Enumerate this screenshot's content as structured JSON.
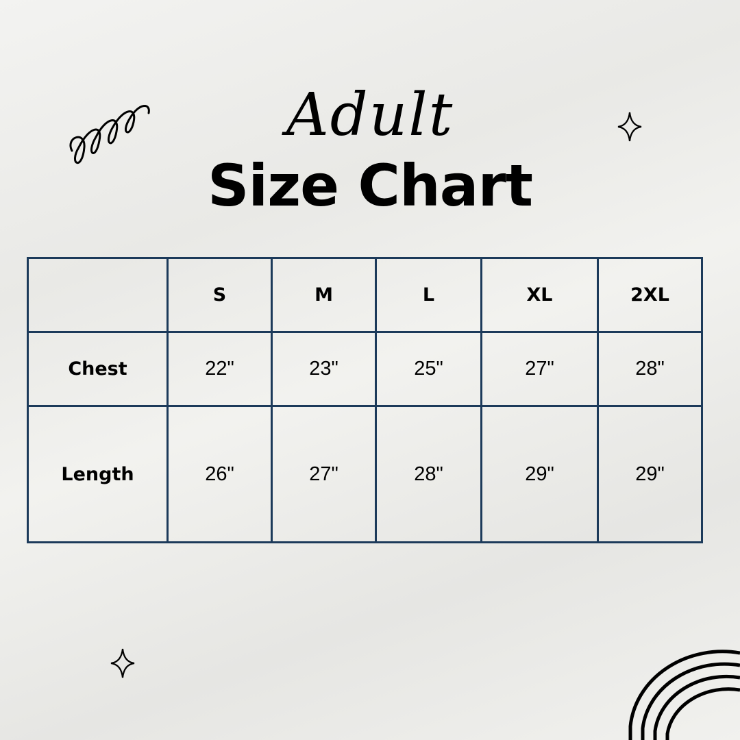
{
  "header": {
    "script_title": "Adult",
    "title": "Size Chart"
  },
  "table": {
    "columns": [
      "",
      "S",
      "M",
      "L",
      "XL",
      "2XL"
    ],
    "rows": [
      {
        "label": "Chest",
        "values": [
          "22\"",
          "23\"",
          "25\"",
          "27\"",
          "28\""
        ]
      },
      {
        "label": "Length",
        "values": [
          "26\"",
          "27\"",
          "28\"",
          "29\"",
          "29\""
        ]
      }
    ]
  },
  "colors": {
    "grid_line": "#1c3a5a",
    "text": "#000000"
  },
  "decorations": [
    "squiggle-icon",
    "sparkle-icon",
    "sparkle-icon",
    "rainbow-arcs-icon"
  ]
}
